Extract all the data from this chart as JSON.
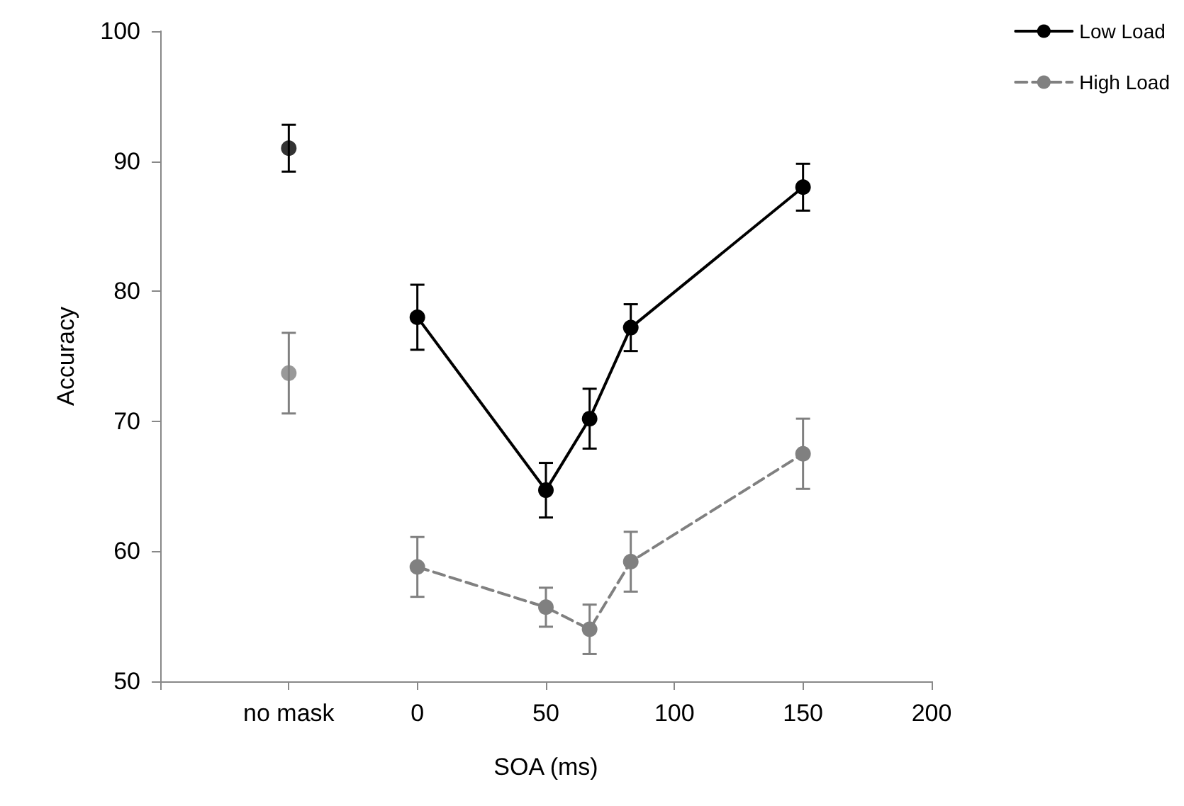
{
  "chart_data": {
    "type": "line",
    "xlabel": "SOA (ms)",
    "ylabel": "Accuracy",
    "xlim": [
      -100,
      200
    ],
    "xticks": [
      {
        "value": -100,
        "label": null
      },
      {
        "value": -50,
        "label": "no mask"
      },
      0,
      50,
      100,
      150,
      200
    ],
    "ylim": [
      50,
      100
    ],
    "yticks": [
      50,
      60,
      70,
      80,
      90,
      100
    ],
    "grid": false,
    "legend": "top right",
    "marker": "circle",
    "series": [
      {
        "name": "Low Load",
        "color": "#000000",
        "line_style": "solid",
        "x": [
          0,
          50,
          67,
          83,
          150
        ],
        "values": [
          78,
          64.7,
          70.2,
          77.2,
          88
        ],
        "errors": [
          2.5,
          2.1,
          2.3,
          1.8,
          1.8
        ]
      },
      {
        "name": "High Load",
        "color": "#808080",
        "line_style": "dashed",
        "x": [
          0,
          50,
          67,
          83,
          150
        ],
        "values": [
          58.8,
          55.7,
          54,
          59.2,
          67.5
        ],
        "errors": [
          2.3,
          1.5,
          1.9,
          2.3,
          2.7
        ]
      },
      {
        "type": "scatter",
        "color": "#000000",
        "x": [
          -50
        ],
        "values": [
          91
        ],
        "errors": [
          1.8
        ]
      },
      {
        "type": "scatter",
        "color": "#808080",
        "x": [
          -50
        ],
        "values": [
          73.7
        ],
        "errors": [
          3.1
        ]
      }
    ]
  }
}
